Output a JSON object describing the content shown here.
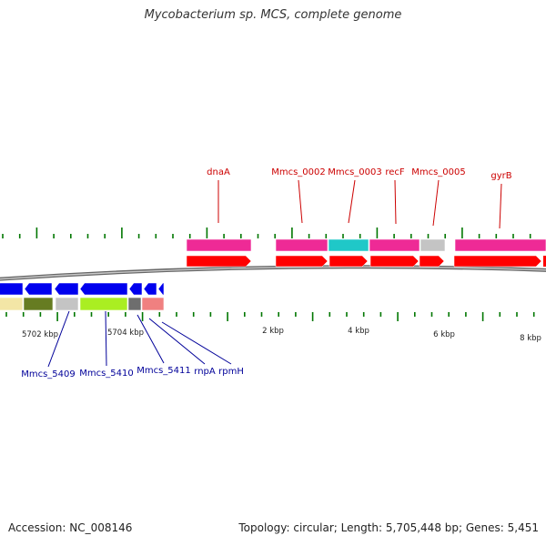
{
  "title": "Mycobacterium sp. MCS, complete genome",
  "footer": {
    "accession": "Accession: NC_008146",
    "summary": "Topology: circular; Length: 5,705,448 bp; Genes: 5,451"
  },
  "colors": {
    "forward_label": "#cc0000",
    "reverse_label": "#000099",
    "tick": "#007700",
    "cds_forward": "#ff0000",
    "cds_reverse": "#0000ee",
    "gene_magenta": "#ee2a96",
    "gene_cyan": "#1fc8c8",
    "gene_gray": "#c4c4c4",
    "gene_cream": "#f3e6a6",
    "gene_olive": "#667c22",
    "gene_lime": "#aaee22",
    "gene_darkgray": "#6e6e6e",
    "gene_salmon": "#f08080",
    "backbone": "#808080"
  },
  "scale_labels": [
    {
      "text": "5702 kbp"
    },
    {
      "text": "5704 kbp"
    },
    {
      "text": "2 kbp"
    },
    {
      "text": "4 kbp"
    },
    {
      "text": "6 kbp"
    },
    {
      "text": "8 kbp"
    }
  ],
  "forward_genes": [
    {
      "label": "dnaA"
    },
    {
      "label": "Mmcs_0002"
    },
    {
      "label": "Mmcs_0003"
    },
    {
      "label": "recF"
    },
    {
      "label": "Mmcs_0005"
    },
    {
      "label": "gyrB"
    }
  ],
  "reverse_genes": [
    {
      "label": "Mmcs_5409"
    },
    {
      "label": "Mmcs_5410"
    },
    {
      "label": "Mmcs_5411"
    },
    {
      "label": "rnpA"
    },
    {
      "label": "rpmH"
    }
  ]
}
